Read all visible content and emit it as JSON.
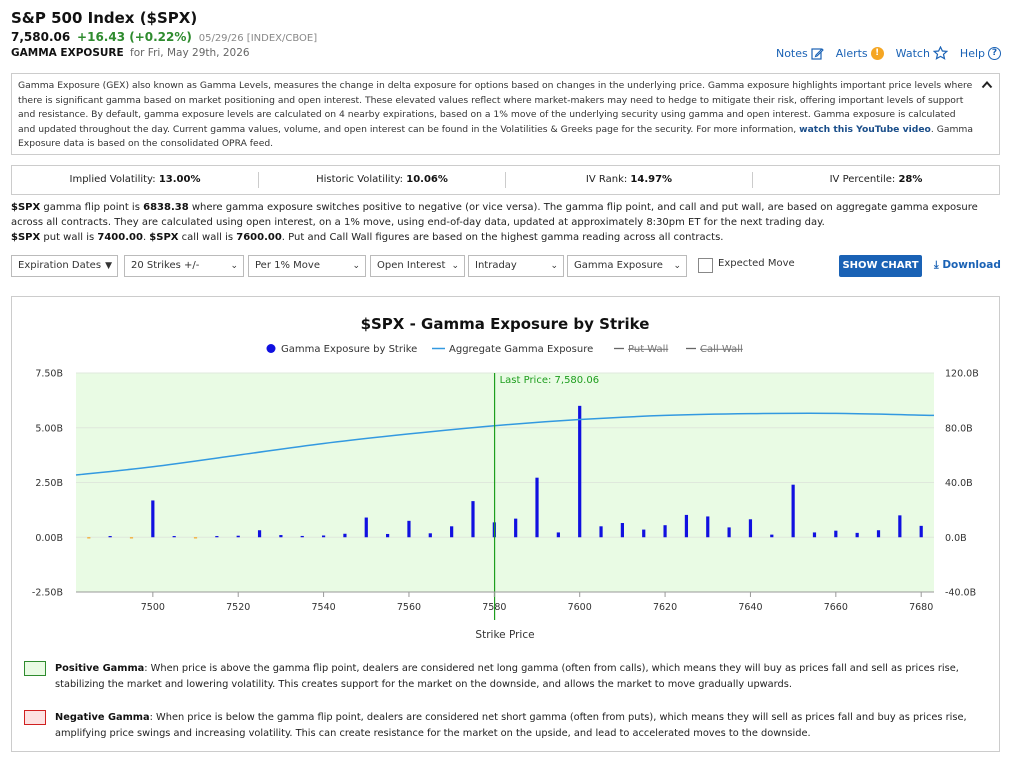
{
  "header": {
    "title": "S&P 500 Index ($SPX)",
    "price": "7,580.06",
    "change": "+16.43 (+0.22%)",
    "meta": "05/29/26 [INDEX/CBOE]",
    "sub_label": "GAMMA EXPOSURE",
    "sub_date": "for Fri, May 29th, 2026"
  },
  "actions": {
    "notes": "Notes",
    "alerts": "Alerts",
    "watch": "Watch",
    "help": "Help"
  },
  "description": {
    "text": "Gamma Exposure (GEX) also known as Gamma Levels, measures the change in delta exposure for options based on changes in the underlying price. Gamma exposure highlights important price levels where there is significant gamma based on market positioning and open interest. These elevated values reflect where market-makers may need to hedge to mitigate their risk, offering important levels of support and resistance. By default, gamma exposure levels are calculated on 4 nearby expirations, based on a 1% move of the underlying security using gamma and open interest. Gamma exposure is calculated and updated throughout the day. Current gamma values, volume, and open interest can be found in the Volatilities & Greeks page for the security. For more information, ",
    "link": "watch this YouTube video",
    "text_end": ". Gamma Exposure data is based on the consolidated OPRA feed."
  },
  "stats": {
    "iv_label": "Implied Volatility:",
    "iv_value": "13.00%",
    "hv_label": "Historic Volatility:",
    "hv_value": "10.06%",
    "ivr_label": "IV Rank:",
    "ivr_value": "14.97%",
    "ivp_label": "IV Percentile:",
    "ivp_value": "28%"
  },
  "info": {
    "sym1": "$SPX",
    "line1a": " gamma flip point is ",
    "flip": "6838.38",
    "line1b": " where gamma exposure switches positive to negative (or vice versa). The gamma flip point, and call and put wall, are based on aggregate gamma exposure across all contracts. They are calculated using open interest, on a 1% move, using end-of-day data, updated at approximately 8:30pm ET for the next trading day.",
    "sym2": "$SPX",
    "line2a": " put wall is ",
    "put_wall": "7400.00",
    "line2b": ". ",
    "sym3": "$SPX",
    "line2c": " call wall is ",
    "call_wall": "7600.00",
    "line2d": ". Put and Call Wall figures are based on the highest gamma reading across all contracts."
  },
  "controls": {
    "expiration": "Expiration Dates",
    "strikes": "20 Strikes +/-",
    "move": "Per 1% Move",
    "interest": "Open Interest",
    "interval": "Intraday",
    "metric": "Gamma Exposure",
    "expected_move": "Expected Move",
    "show_chart": "SHOW CHART",
    "download": "Download"
  },
  "chart_data": {
    "type": "bar",
    "title": "$SPX - Gamma Exposure by Strike",
    "xlabel": "Strike Price",
    "legend": [
      {
        "name": "Gamma Exposure by Strike",
        "color": "#1010e0"
      },
      {
        "name": "Aggregate Gamma Exposure",
        "color": "#3399e0"
      },
      {
        "name": "Put Wall",
        "color": "#666666"
      },
      {
        "name": "Call Wall",
        "color": "#666666"
      }
    ],
    "legend_placement": "top-center",
    "last_price_label": "Last Price: 7,580.06",
    "last_price": 7580.06,
    "xlim": [
      7482,
      7683
    ],
    "x_ticks": [
      7500,
      7520,
      7540,
      7560,
      7580,
      7600,
      7620,
      7640,
      7660,
      7680
    ],
    "ylim_left": [
      -2.5,
      7.5
    ],
    "y_ticks_left": [
      "7.50B",
      "5.00B",
      "2.50B",
      "0.00B",
      "-2.50B"
    ],
    "y_ticks_left_vals": [
      7.5,
      5.0,
      2.5,
      0.0,
      -2.5
    ],
    "ylim_right": [
      -40,
      120
    ],
    "y_ticks_right": [
      "120.0B",
      "80.0B",
      "40.0B",
      "0.0B",
      "-40.0B"
    ],
    "y_ticks_right_vals": [
      120,
      80,
      40,
      0,
      -40
    ],
    "positive_color": "#1010e0",
    "negative_color": "#f5a623",
    "bars": {
      "x": [
        7485,
        7490,
        7495,
        7500,
        7505,
        7510,
        7515,
        7520,
        7525,
        7530,
        7535,
        7540,
        7545,
        7550,
        7555,
        7560,
        7565,
        7570,
        7575,
        7580,
        7585,
        7590,
        7595,
        7600,
        7605,
        7610,
        7615,
        7620,
        7625,
        7630,
        7635,
        7640,
        7645,
        7650,
        7655,
        7660,
        7665,
        7670,
        7675,
        7680
      ],
      "values": [
        -0.04,
        0.02,
        -0.04,
        1.68,
        0.03,
        -0.05,
        0.05,
        0.07,
        0.32,
        0.1,
        0.06,
        0.08,
        0.16,
        0.9,
        0.15,
        0.75,
        0.18,
        0.5,
        1.65,
        0.68,
        0.85,
        2.72,
        0.22,
        6.0,
        0.5,
        0.65,
        0.35,
        0.55,
        1.02,
        0.95,
        0.45,
        0.82,
        0.12,
        2.4,
        0.22,
        0.3,
        0.2,
        0.32,
        1.0,
        0.52
      ]
    },
    "aggregate": {
      "x": [
        7482,
        7500,
        7520,
        7540,
        7560,
        7580,
        7600,
        7620,
        7640,
        7660,
        7683
      ],
      "values": [
        45.5,
        51.5,
        60.0,
        68.5,
        75.5,
        81.5,
        86.0,
        89.0,
        90.3,
        90.5,
        89.0
      ]
    }
  },
  "notes": {
    "pos_title": "Positive Gamma",
    "pos_text": ": When price is above the gamma flip point, dealers are considered net long gamma (often from calls), which means they will buy as prices fall and sell as prices rise, stabilizing the market and lowering volatility. This creates support for the market on the downside, and allows the market to move gradually upwards.",
    "neg_title": "Negative Gamma",
    "neg_text": ": When price is below the gamma flip point, dealers are considered net short gamma (often from puts), which means they will sell as prices fall and buy as prices rise, amplifying price swings and increasing volatility. This can create resistance for the market on the upside, and lead to accelerated moves to the downside."
  },
  "colors": {
    "accent": "#1a62b5",
    "positive_bg": "#e9fbe4",
    "positive_border": "#2e8b2e",
    "negative_bg": "#fde2e2",
    "negative_border": "#d02020"
  }
}
